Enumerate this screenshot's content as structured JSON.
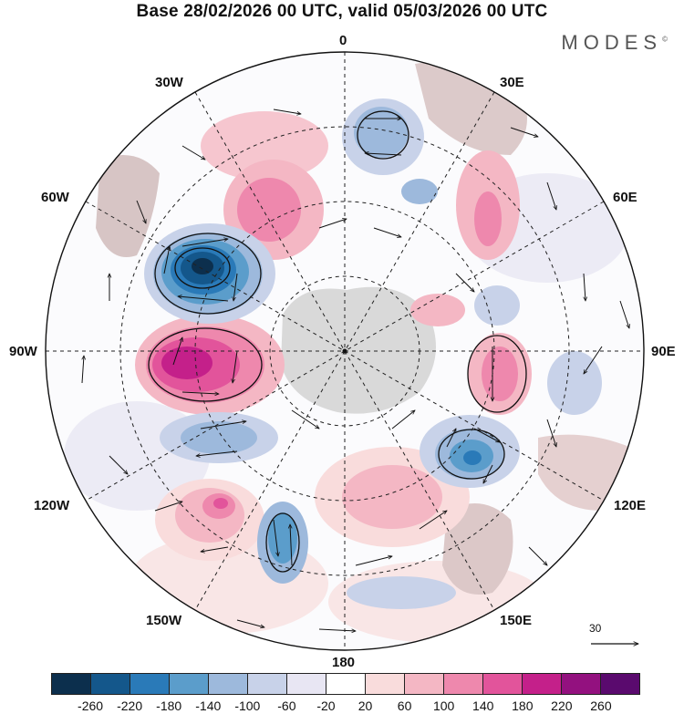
{
  "title": "Base 28/02/2026 00 UTC, valid 05/03/2026 00 UTC",
  "brand": "MODES",
  "brand_mark": "©",
  "longitude_labels": {
    "lon_0": "0",
    "lon_30e": "30E",
    "lon_60e": "60E",
    "lon_90e": "90E",
    "lon_120e": "120E",
    "lon_150e": "150E",
    "lon_180": "180",
    "lon_150w": "150W",
    "lon_120w": "120W",
    "lon_90w": "90W",
    "lon_60w": "60W",
    "lon_30w": "30W"
  },
  "reference_vector": {
    "label": "30"
  },
  "legend": {
    "colors": [
      "#0c2f4d",
      "#14578b",
      "#2a7ab8",
      "#5b9dcb",
      "#9db9dc",
      "#c8d2e9",
      "#e8e6f3",
      "#ffffff",
      "#f9dcdc",
      "#f4b7c4",
      "#ee88ad",
      "#e2549b",
      "#c4208a",
      "#93117f",
      "#5a0a6e"
    ],
    "ticks": [
      "-260",
      "-220",
      "-180",
      "-140",
      "-100",
      "-60",
      "-20",
      "20",
      "60",
      "100",
      "140",
      "180",
      "220",
      "260"
    ]
  }
}
